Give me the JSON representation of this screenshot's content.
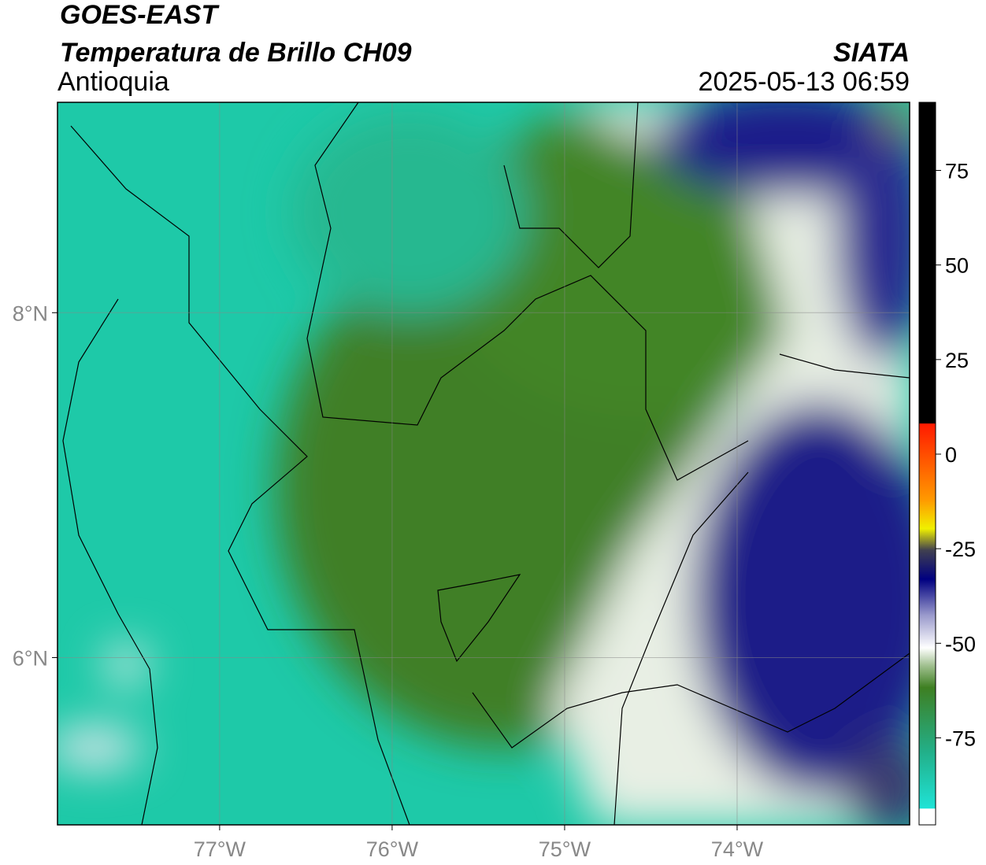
{
  "header": {
    "title": "GOES-EAST",
    "subtitle": "Temperatura de Brillo CH09",
    "region": "Antioquia",
    "source": "SIATA",
    "datetime": "2025-05-13 06:59"
  },
  "map": {
    "xlim": [
      -77.94,
      -73.0
    ],
    "ylim": [
      5.03,
      9.22
    ],
    "xticks": [
      {
        "value": -77,
        "label": "77°W"
      },
      {
        "value": -76,
        "label": "76°W"
      },
      {
        "value": -75,
        "label": "75°W"
      },
      {
        "value": -74,
        "label": "74°W"
      }
    ],
    "yticks": [
      {
        "value": 6,
        "label": "6°N"
      },
      {
        "value": 8,
        "label": "8°N"
      }
    ],
    "grid": true
  },
  "colorbar": {
    "lim": [
      -98,
      93
    ],
    "ticks": [
      -75,
      -50,
      -25,
      0,
      25,
      50,
      75
    ]
  }
}
